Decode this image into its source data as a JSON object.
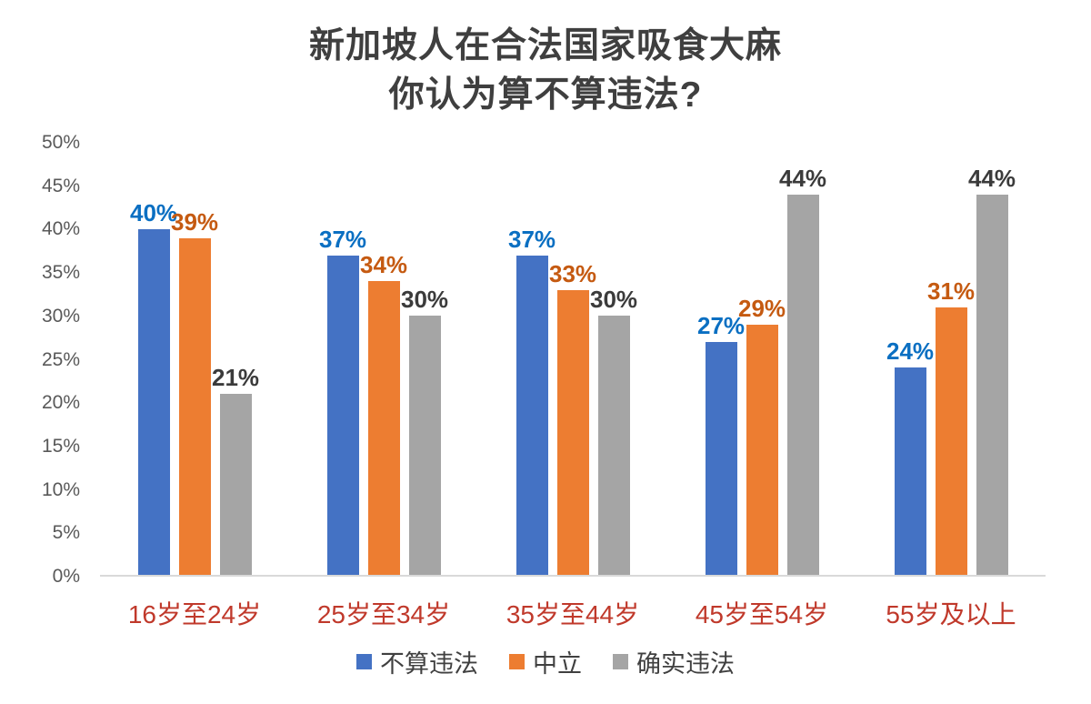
{
  "chart_data": {
    "type": "bar",
    "title_line1": "新加坡人在合法国家吸食大麻",
    "title_line2": "你认为算不算违法?",
    "categories": [
      "16岁至24岁",
      "25岁至34岁",
      "35岁至44岁",
      "45岁至54岁",
      "55岁及以上"
    ],
    "series": [
      {
        "name": "不算违法",
        "values": [
          40,
          37,
          37,
          27,
          24
        ],
        "color": "#4472c4",
        "label_color": "#0a6fc2"
      },
      {
        "name": "中立",
        "values": [
          39,
          34,
          33,
          29,
          31
        ],
        "color": "#ed7d31",
        "label_color": "#c55a11"
      },
      {
        "name": "确实违法",
        "values": [
          21,
          30,
          30,
          44,
          44
        ],
        "color": "#a5a5a5",
        "label_color": "#3b3b3b"
      }
    ],
    "value_suffix": "%",
    "ylim": [
      0,
      50
    ],
    "yticks": [
      "50%",
      "45%",
      "40%",
      "35%",
      "30%",
      "25%",
      "20%",
      "15%",
      "10%",
      "5%",
      "0%"
    ],
    "grid": false,
    "legend_position": "bottom",
    "xlabel": "",
    "ylabel": "",
    "x_label_color": "#c0392b",
    "axis_line_color": "#d9d9d9"
  }
}
